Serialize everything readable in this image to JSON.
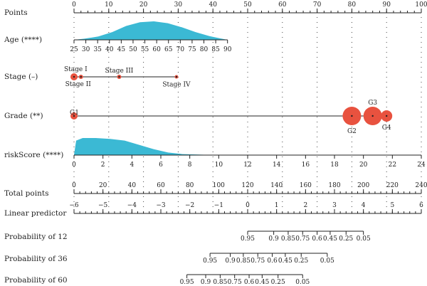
{
  "chart_data": {
    "type": "nomogram",
    "rows": [
      {
        "id": "points",
        "label": "Points",
        "kind": "axis",
        "tick_side": "below",
        "label_side": "above",
        "ticks": [
          {
            "v": 0,
            "t": "0"
          },
          {
            "v": 10,
            "t": "10"
          },
          {
            "v": 20,
            "t": "20"
          },
          {
            "v": 30,
            "t": "30"
          },
          {
            "v": 40,
            "t": "40"
          },
          {
            "v": 50,
            "t": "50"
          },
          {
            "v": 60,
            "t": "60"
          },
          {
            "v": 70,
            "t": "70"
          },
          {
            "v": 80,
            "t": "80"
          },
          {
            "v": 90,
            "t": "90"
          },
          {
            "v": 100,
            "t": "100"
          }
        ],
        "minor_step": 2
      },
      {
        "id": "age",
        "label": "Age (****)",
        "kind": "density",
        "color": "#3bb9d4",
        "ticks": [
          {
            "v": 0,
            "t": "25"
          },
          {
            "v": 3.4,
            "t": "30"
          },
          {
            "v": 6.8,
            "t": "35"
          },
          {
            "v": 10.2,
            "t": "40"
          },
          {
            "v": 13.6,
            "t": "45"
          },
          {
            "v": 17,
            "t": "50"
          },
          {
            "v": 20.4,
            "t": "55"
          },
          {
            "v": 23.8,
            "t": "60"
          },
          {
            "v": 27.2,
            "t": "65"
          },
          {
            "v": 30.6,
            "t": "70"
          },
          {
            "v": 34,
            "t": "75"
          },
          {
            "v": 37.4,
            "t": "80"
          },
          {
            "v": 40.8,
            "t": "85"
          },
          {
            "v": 44.2,
            "t": "90"
          }
        ],
        "density": [
          [
            0,
            0
          ],
          [
            3,
            0.06
          ],
          [
            7,
            0.18
          ],
          [
            11,
            0.42
          ],
          [
            15,
            0.75
          ],
          [
            19,
            0.95
          ],
          [
            23,
            1
          ],
          [
            27,
            0.9
          ],
          [
            31,
            0.68
          ],
          [
            35,
            0.42
          ],
          [
            39,
            0.2
          ],
          [
            42,
            0.08
          ],
          [
            44.2,
            0
          ]
        ]
      },
      {
        "id": "stage",
        "label": "Stage (–)",
        "kind": "categorical",
        "line": [
          0,
          29.5
        ],
        "points": [
          {
            "name": "Stage I",
            "v": 0,
            "size": 5,
            "label_pos": "above"
          },
          {
            "name": "Stage II",
            "v": 2,
            "size": 3,
            "label_pos": "below"
          },
          {
            "name": "Stage III",
            "v": 13,
            "size": 3,
            "label_pos": "above"
          },
          {
            "name": "Stage IV",
            "v": 29.5,
            "size": 2.5,
            "label_pos": "below"
          }
        ]
      },
      {
        "id": "grade",
        "label": "Grade (**)",
        "kind": "categorical",
        "line": [
          0,
          90
        ],
        "points": [
          {
            "name": "G1",
            "v": 0,
            "size": 5,
            "label_pos": "above"
          },
          {
            "name": "G2",
            "v": 80,
            "size": 13,
            "label_pos": "below"
          },
          {
            "name": "G3",
            "v": 86,
            "size": 13,
            "label_pos": "above"
          },
          {
            "name": "G4",
            "v": 90,
            "size": 8,
            "label_pos": "below"
          }
        ]
      },
      {
        "id": "riskscore",
        "label": "riskScore (****)",
        "kind": "density",
        "color": "#3bb9d4",
        "ticks": [
          {
            "v": 0,
            "t": "0"
          },
          {
            "v": 2,
            "t": "2"
          },
          {
            "v": 4,
            "t": "4"
          },
          {
            "v": 6,
            "t": "6"
          },
          {
            "v": 8,
            "t": "8"
          },
          {
            "v": 10,
            "t": "10"
          },
          {
            "v": 12,
            "t": "12"
          },
          {
            "v": 14,
            "t": "14"
          },
          {
            "v": 16,
            "t": "16"
          },
          {
            "v": 18,
            "t": "18"
          },
          {
            "v": 20,
            "t": "20"
          },
          {
            "v": 22,
            "t": "22"
          },
          {
            "v": 24,
            "t": "24"
          }
        ],
        "axis_min": 0,
        "axis_max": 24,
        "density": [
          [
            0,
            0
          ],
          [
            0.15,
            0.85
          ],
          [
            0.6,
            1
          ],
          [
            1.5,
            1
          ],
          [
            2.5,
            0.95
          ],
          [
            3.5,
            0.85
          ],
          [
            4.5,
            0.6
          ],
          [
            5.5,
            0.35
          ],
          [
            6.5,
            0.15
          ],
          [
            7.5,
            0.06
          ],
          [
            9,
            0.02
          ],
          [
            10.5,
            0
          ]
        ]
      },
      {
        "id": "total",
        "label": "Total points",
        "kind": "axis",
        "ticks": [
          {
            "v": 0,
            "t": "0"
          },
          {
            "v": 20,
            "t": "20"
          },
          {
            "v": 40,
            "t": "40"
          },
          {
            "v": 60,
            "t": "60"
          },
          {
            "v": 80,
            "t": "80"
          },
          {
            "v": 100,
            "t": "100"
          },
          {
            "v": 120,
            "t": "120"
          },
          {
            "v": 140,
            "t": "140"
          },
          {
            "v": 160,
            "t": "160"
          },
          {
            "v": 180,
            "t": "180"
          },
          {
            "v": 200,
            "t": "200"
          },
          {
            "v": 220,
            "t": "220"
          },
          {
            "v": 240,
            "t": "240"
          }
        ],
        "axis_min": 0,
        "axis_max": 240,
        "minor_step": 4
      },
      {
        "id": "lp",
        "label": "Linear predictor",
        "kind": "axis",
        "ticks": [
          {
            "v": -6,
            "t": "−6"
          },
          {
            "v": -5,
            "t": "−5"
          },
          {
            "v": -4,
            "t": "−4"
          },
          {
            "v": -3,
            "t": "−3"
          },
          {
            "v": -2,
            "t": "−2"
          },
          {
            "v": -1,
            "t": "−1"
          },
          {
            "v": 0,
            "t": "0"
          },
          {
            "v": 1,
            "t": "1"
          },
          {
            "v": 2,
            "t": "2"
          },
          {
            "v": 3,
            "t": "3"
          },
          {
            "v": 4,
            "t": "4"
          },
          {
            "v": 5,
            "t": "5"
          },
          {
            "v": 6,
            "t": "6"
          }
        ],
        "axis_min": -6,
        "axis_max": 6,
        "minor_step": 0.2
      },
      {
        "id": "p12",
        "label": "Probability of 12",
        "kind": "prob",
        "ticks": [
          {
            "lp": 0,
            "t": "0.95"
          },
          {
            "lp": 0.9,
            "t": "0.9"
          },
          {
            "lp": 1.4,
            "t": "0.85"
          },
          {
            "lp": 1.9,
            "t": "0.75"
          },
          {
            "lp": 2.4,
            "t": "0.6"
          },
          {
            "lp": 2.85,
            "t": "0.45"
          },
          {
            "lp": 3.4,
            "t": "0.25"
          },
          {
            "lp": 4,
            "t": "0.05"
          }
        ]
      },
      {
        "id": "p36",
        "label": "Probability of 36",
        "kind": "prob",
        "ticks": [
          {
            "lp": -1.3,
            "t": "0.95"
          },
          {
            "lp": -0.6,
            "t": "0.9"
          },
          {
            "lp": -0.15,
            "t": "0.85"
          },
          {
            "lp": 0.35,
            "t": "0.75"
          },
          {
            "lp": 0.85,
            "t": "0.6"
          },
          {
            "lp": 1.3,
            "t": "0.45"
          },
          {
            "lp": 1.85,
            "t": "0.25"
          },
          {
            "lp": 2.75,
            "t": "0.05"
          }
        ]
      },
      {
        "id": "p60",
        "label": "Probability of 60",
        "kind": "prob",
        "ticks": [
          {
            "lp": -2.1,
            "t": "0.95"
          },
          {
            "lp": -1.45,
            "t": "0.9"
          },
          {
            "lp": -0.95,
            "t": "0.85"
          },
          {
            "lp": -0.45,
            "t": "0.75"
          },
          {
            "lp": 0.05,
            "t": "0.6"
          },
          {
            "lp": 0.5,
            "t": "0.45"
          },
          {
            "lp": 1.05,
            "t": "0.25"
          },
          {
            "lp": 1.9,
            "t": "0.05"
          }
        ]
      }
    ]
  }
}
